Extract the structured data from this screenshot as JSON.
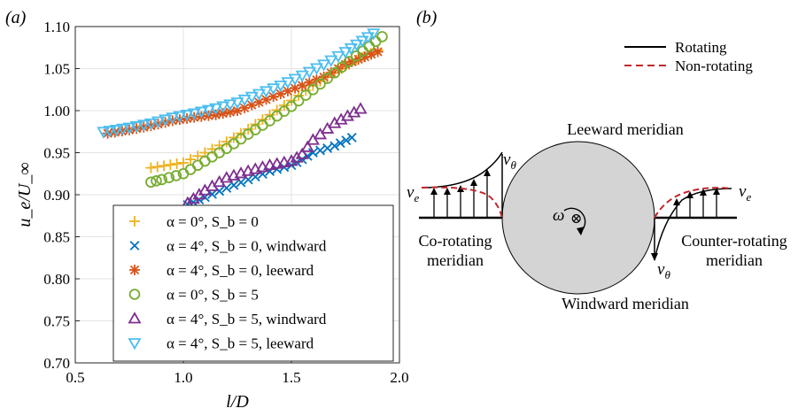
{
  "panel_a": {
    "label": "(a)",
    "xlabel": "l/D",
    "ylabel": "u_e/U_∞",
    "legend": [
      {
        "symbol": "plus",
        "color": "#EDB120",
        "text": "α = 0°, S_b = 0"
      },
      {
        "symbol": "cross",
        "color": "#0072BD",
        "text": "α = 4°, S_b = 0, windward"
      },
      {
        "symbol": "asterisk",
        "color": "#D95319",
        "text": "α = 4°, S_b = 0, leeward"
      },
      {
        "symbol": "circle",
        "color": "#77AC30",
        "text": "α = 0°, S_b = 5"
      },
      {
        "symbol": "triangle-up",
        "color": "#7E2F8E",
        "text": "α = 4°, S_b = 5, windward"
      },
      {
        "symbol": "triangle-down",
        "color": "#4DBEEE",
        "text": "α = 4°, S_b = 5, leeward"
      }
    ]
  },
  "chart_data": {
    "type": "scatter",
    "xlabel": "l/D",
    "ylabel": "u_e/U_∞",
    "xlim": [
      0.5,
      2.0
    ],
    "ylim": [
      0.7,
      1.1
    ],
    "xticks": [
      "0.5",
      "1.0",
      "1.5",
      "2.0"
    ],
    "yticks": [
      "0.70",
      "0.75",
      "0.80",
      "0.85",
      "0.90",
      "0.95",
      "1.00",
      "1.05",
      "1.10"
    ],
    "grid": true,
    "legend_position": "bottom-right",
    "series": [
      {
        "name": "α = 0°, S_b = 0",
        "marker": "plus",
        "color": "#EDB120",
        "x": [
          0.85,
          1.0,
          1.1,
          1.2,
          1.3,
          1.4,
          1.5,
          1.6,
          1.7,
          1.8,
          1.9
        ],
        "y": [
          0.932,
          0.938,
          0.95,
          0.963,
          0.978,
          0.995,
          1.012,
          1.03,
          1.045,
          1.06,
          1.072
        ]
      },
      {
        "name": "α = 4°, S_b = 0, windward",
        "marker": "cross",
        "color": "#0072BD",
        "x": [
          1.02,
          1.1,
          1.2,
          1.3,
          1.4,
          1.5,
          1.55,
          1.6,
          1.7,
          1.78
        ],
        "y": [
          0.888,
          0.897,
          0.908,
          0.918,
          0.928,
          0.935,
          0.942,
          0.95,
          0.958,
          0.968
        ]
      },
      {
        "name": "α = 4°, S_b = 0, leeward",
        "marker": "asterisk",
        "color": "#D95319",
        "x": [
          0.65,
          0.75,
          0.85,
          0.95,
          1.05,
          1.15,
          1.25,
          1.35,
          1.45,
          1.55,
          1.65,
          1.75,
          1.9
        ],
        "y": [
          0.973,
          0.977,
          0.982,
          0.988,
          0.992,
          0.995,
          1.0,
          1.01,
          1.02,
          1.03,
          1.04,
          1.055,
          1.07
        ]
      },
      {
        "name": "α = 0°, S_b = 5",
        "marker": "circle",
        "color": "#77AC30",
        "x": [
          0.85,
          0.9,
          1.0,
          1.1,
          1.2,
          1.3,
          1.4,
          1.5,
          1.6,
          1.7,
          1.8,
          1.92
        ],
        "y": [
          0.915,
          0.918,
          0.925,
          0.94,
          0.955,
          0.972,
          0.988,
          1.005,
          1.025,
          1.045,
          1.065,
          1.088
        ]
      },
      {
        "name": "α = 4°, S_b = 5, windward",
        "marker": "triangle-up",
        "color": "#7E2F8E",
        "x": [
          1.02,
          1.1,
          1.2,
          1.3,
          1.4,
          1.5,
          1.55,
          1.6,
          1.7,
          1.82
        ],
        "y": [
          0.89,
          0.905,
          0.92,
          0.928,
          0.935,
          0.94,
          0.948,
          0.965,
          0.985,
          1.002
        ]
      },
      {
        "name": "α = 4°, S_b = 5, leeward",
        "marker": "triangle-down",
        "color": "#4DBEEE",
        "x": [
          0.63,
          0.75,
          0.85,
          0.95,
          1.05,
          1.15,
          1.25,
          1.35,
          1.45,
          1.55,
          1.65,
          1.75,
          1.88
        ],
        "y": [
          0.975,
          0.98,
          0.985,
          0.992,
          0.997,
          1.003,
          1.01,
          1.02,
          1.03,
          1.042,
          1.055,
          1.07,
          1.092
        ]
      }
    ]
  },
  "panel_b": {
    "label": "(b)",
    "legend_rotating": "Rotating",
    "legend_nonrotating": "Non-rotating",
    "leeward": "Leeward meridian",
    "windward": "Windward meridian",
    "corotating_1": "Co-rotating",
    "corotating_2": "meridian",
    "counterrotating_1": "Counter-rotating",
    "counterrotating_2": "meridian",
    "v_e_left": "v",
    "v_e_sub": "e",
    "v_theta": "v",
    "v_theta_sub": "θ",
    "omega": "ω",
    "into_page": "⊗",
    "colors": {
      "rotating": "#000000",
      "nonrotating": "#C0272D",
      "cylinder": "#D4D4D4"
    }
  }
}
